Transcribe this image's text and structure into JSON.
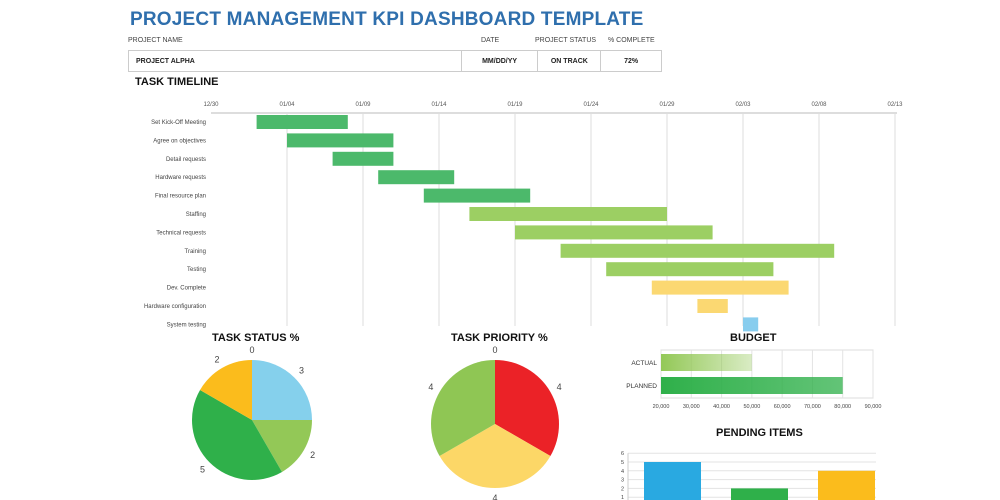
{
  "title": "PROJECT MANAGEMENT KPI DASHBOARD TEMPLATE",
  "header": {
    "labels": {
      "project_name": "PROJECT NAME",
      "date": "DATE",
      "project_status": "PROJECT STATUS",
      "pct_complete": "% COMPLETE"
    },
    "values": {
      "project_name": "PROJECT ALPHA",
      "date": "MM/DD/YY",
      "project_status": "ON TRACK",
      "pct_complete": "72%"
    }
  },
  "timeline": {
    "title": "TASK TIMELINE",
    "ticks": [
      "12/30",
      "01/04",
      "01/09",
      "01/14",
      "01/19",
      "01/24",
      "01/29",
      "02/03",
      "02/08",
      "02/13"
    ],
    "tasks": [
      {
        "name": "Set Kick-Off Meeting",
        "start": "01/02",
        "days": 6,
        "color": "#4cb96b"
      },
      {
        "name": "Agree on objectives",
        "start": "01/04",
        "days": 7,
        "color": "#4cb96b"
      },
      {
        "name": "Detail requests",
        "start": "01/07",
        "days": 4,
        "color": "#4cb96b"
      },
      {
        "name": "Hardware requests",
        "start": "01/10",
        "days": 5,
        "color": "#4cb96b"
      },
      {
        "name": "Final resource plan",
        "start": "01/13",
        "days": 7,
        "color": "#4cb96b"
      },
      {
        "name": "Staffing",
        "start": "01/16",
        "days": 13,
        "color": "#9ccf63"
      },
      {
        "name": "Technical requests",
        "start": "01/19",
        "days": 13,
        "color": "#9ccf63"
      },
      {
        "name": "Training",
        "start": "01/22",
        "days": 18,
        "color": "#9ccf63"
      },
      {
        "name": "Testing",
        "start": "01/25",
        "days": 11,
        "color": "#9ccf63"
      },
      {
        "name": "Dev. Complete",
        "start": "01/28",
        "days": 9,
        "color": "#fbd872"
      },
      {
        "name": "Hardware configuration",
        "start": "01/31",
        "days": 2,
        "color": "#fbd872"
      },
      {
        "name": "System testing",
        "start": "02/03",
        "days": 1,
        "color": "#88cdee"
      }
    ]
  },
  "task_status": {
    "title": "TASK STATUS %",
    "slices": [
      {
        "value": 0,
        "color": "#e0e0e0"
      },
      {
        "value": 3,
        "color": "#85d0ec"
      },
      {
        "value": 2,
        "color": "#93c857"
      },
      {
        "value": 5,
        "color": "#2fb04a"
      },
      {
        "value": 2,
        "color": "#fbbc1c"
      }
    ]
  },
  "task_priority": {
    "title": "TASK PRIORITY %",
    "slices": [
      {
        "value": 0,
        "color": "#e0e0e0"
      },
      {
        "value": 4,
        "color": "#eb2227"
      },
      {
        "value": 4,
        "color": "#fcd767"
      },
      {
        "value": 4,
        "color": "#8fc654"
      }
    ]
  },
  "budget": {
    "title": "BUDGET",
    "bars": [
      {
        "label": "ACTUAL",
        "value": 50000,
        "color": "#93c857"
      },
      {
        "label": "PLANNED",
        "value": 80000,
        "color": "#2fb04a"
      }
    ],
    "xlim": [
      20000,
      90000
    ],
    "ticks": [
      "20,000",
      "30,000",
      "40,000",
      "50,000",
      "60,000",
      "70,000",
      "80,000",
      "90,000"
    ]
  },
  "pending": {
    "title": "PENDING ITEMS",
    "values": [
      5,
      2,
      4
    ],
    "colors": [
      "#29a9e1",
      "#2fb04a",
      "#fbbc1c"
    ],
    "ylim": [
      0,
      6
    ],
    "ticks": [
      "1",
      "2",
      "3",
      "4",
      "5",
      "6"
    ]
  }
}
